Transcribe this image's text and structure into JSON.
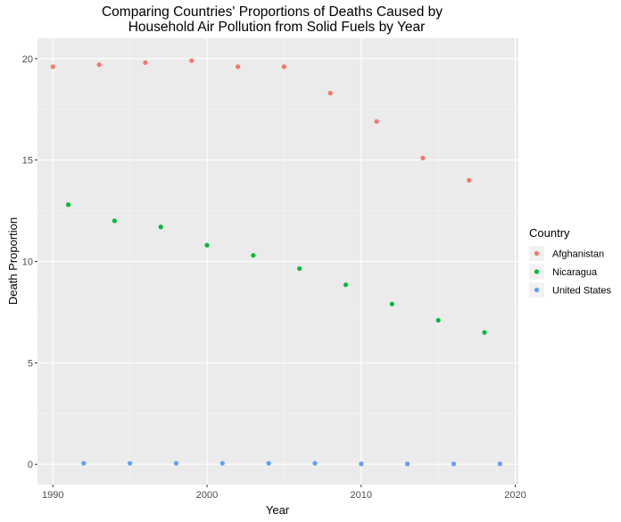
{
  "chart_data": {
    "type": "scatter",
    "title_line1": "Comparing Countries' Proportions of Deaths Caused by",
    "title_line2": "Household Air Pollution from Solid Fuels by Year",
    "xlabel": "Year",
    "ylabel": "Death Proportion",
    "xlim": [
      1989,
      2020.2
    ],
    "ylim": [
      -1,
      21
    ],
    "x_ticks": [
      1990,
      2000,
      2010,
      2020
    ],
    "y_ticks": [
      0,
      5,
      10,
      15,
      20
    ],
    "grid": true,
    "legend": {
      "title": "Country",
      "position": "right"
    },
    "series": [
      {
        "name": "Afghanistan",
        "color": "#F8766D",
        "x": [
          1990,
          1993,
          1996,
          1999,
          2002,
          2005,
          2008,
          2011,
          2014,
          2017
        ],
        "y": [
          19.6,
          19.7,
          19.8,
          19.9,
          19.6,
          19.6,
          18.3,
          16.9,
          15.1,
          14.0
        ]
      },
      {
        "name": "Nicaragua",
        "color": "#00BA38",
        "x": [
          1991,
          1994,
          1997,
          2000,
          2003,
          2006,
          2009,
          2012,
          2015,
          2018
        ],
        "y": [
          12.8,
          12.0,
          11.7,
          10.8,
          10.3,
          9.65,
          8.85,
          7.9,
          7.1,
          6.5
        ]
      },
      {
        "name": "United States",
        "color": "#619CFF",
        "x": [
          1992,
          1995,
          1998,
          2001,
          2004,
          2007,
          2010,
          2013,
          2016,
          2019
        ],
        "y": [
          0.05,
          0.05,
          0.05,
          0.05,
          0.05,
          0.05,
          0.02,
          0.02,
          0.02,
          0.02
        ]
      }
    ]
  }
}
